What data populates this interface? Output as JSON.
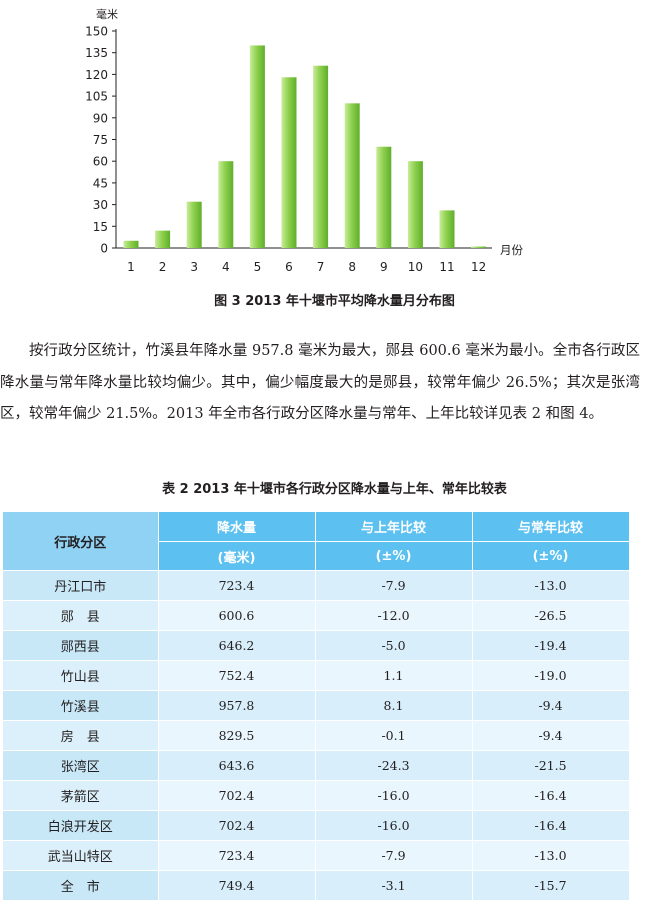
{
  "chart_data": {
    "type": "bar",
    "ylabel": "毫米",
    "xlabel": "月份",
    "categories": [
      "1",
      "2",
      "3",
      "4",
      "5",
      "6",
      "7",
      "8",
      "9",
      "10",
      "11",
      "12"
    ],
    "values": [
      5,
      12,
      32,
      60,
      140,
      118,
      126,
      100,
      70,
      60,
      26,
      1
    ],
    "ylim": [
      0,
      150
    ],
    "yticks": [
      "0",
      "15",
      "30",
      "45",
      "60",
      "75",
      "90",
      "105",
      "120",
      "135",
      "150"
    ],
    "grid": false,
    "bar_color": "#8fd14f"
  },
  "figure_caption": "图 3  2013 年十堰市平均降水量月分布图",
  "paragraph": "按行政分区统计，竹溪县年降水量 957.8 毫米为最大，郧县 600.6 毫米为最小。全市各行政区降水量与常年降水量比较均偏少。其中，偏少幅度最大的是郧县，较常年偏少 26.5%；其次是张湾区，较常年偏少 21.5%。2013 年全市各行政分区降水量与常年、上年比较详见表 2 和图 4。",
  "table_caption": "表 2  2013 年十堰市各行政分区降水量与上年、常年比较表",
  "table": {
    "headers": {
      "region": "行政分区",
      "rain": "降水量",
      "rain_unit": "(毫米)",
      "last_year": "与上年比较",
      "last_year_unit": "(±%)",
      "normal": "与常年比较",
      "normal_unit": "(±%)"
    },
    "rows": [
      {
        "region": "丹江口市",
        "rain": "723.4",
        "last_year": "-7.9",
        "normal": "-13.0"
      },
      {
        "region": "郧　县",
        "rain": "600.6",
        "last_year": "-12.0",
        "normal": "-26.5"
      },
      {
        "region": "郧西县",
        "rain": "646.2",
        "last_year": "-5.0",
        "normal": "-19.4"
      },
      {
        "region": "竹山县",
        "rain": "752.4",
        "last_year": "1.1",
        "normal": "-19.0"
      },
      {
        "region": "竹溪县",
        "rain": "957.8",
        "last_year": "8.1",
        "normal": "-9.4"
      },
      {
        "region": "房　县",
        "rain": "829.5",
        "last_year": "-0.1",
        "normal": "-9.4"
      },
      {
        "region": "张湾区",
        "rain": "643.6",
        "last_year": "-24.3",
        "normal": "-21.5"
      },
      {
        "region": "茅箭区",
        "rain": "702.4",
        "last_year": "-16.0",
        "normal": "-16.4"
      },
      {
        "region": "白浪开发区",
        "rain": "702.4",
        "last_year": "-16.0",
        "normal": "-16.4"
      },
      {
        "region": "武当山特区",
        "rain": "723.4",
        "last_year": "-7.9",
        "normal": "-13.0"
      },
      {
        "region": "全　市",
        "rain": "749.4",
        "last_year": "-3.1",
        "normal": "-15.7"
      }
    ]
  }
}
